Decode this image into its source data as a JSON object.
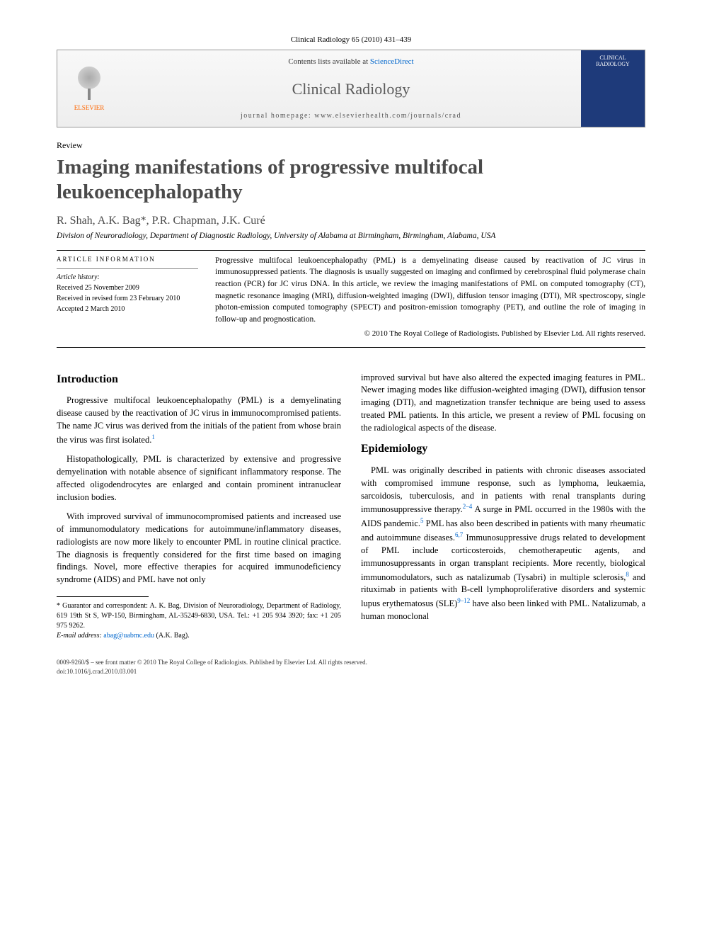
{
  "journalCitation": "Clinical Radiology 65 (2010) 431–439",
  "banner": {
    "publisher": "ELSEVIER",
    "contentsPre": "Contents lists available at ",
    "contentsLink": "ScienceDirect",
    "journalName": "Clinical Radiology",
    "homepagePre": "journal homepage: ",
    "homepageUrl": "www.elsevierhealth.com/journals/crad",
    "coverLabel": "CLINICAL RADIOLOGY"
  },
  "articleType": "Review",
  "title": "Imaging manifestations of progressive multifocal leukoencephalopathy",
  "authors": "R. Shah, A.K. Bag*, P.R. Chapman, J.K. Curé",
  "affiliation": "Division of Neuroradiology, Department of Diagnostic Radiology, University of Alabama at Birmingham, Birmingham, Alabama, USA",
  "articleInfo": {
    "heading": "ARTICLE INFORMATION",
    "historyHeading": "Article history:",
    "received": "Received 25 November 2009",
    "revised": "Received in revised form 23 February 2010",
    "accepted": "Accepted 2 March 2010"
  },
  "abstract": "Progressive multifocal leukoencephalopathy (PML) is a demyelinating disease caused by reactivation of JC virus in immunosuppressed patients. The diagnosis is usually suggested on imaging and confirmed by cerebrospinal fluid polymerase chain reaction (PCR) for JC virus DNA. In this article, we review the imaging manifestations of PML on computed tomography (CT), magnetic resonance imaging (MRI), diffusion-weighted imaging (DWI), diffusion tensor imaging (DTI), MR spectroscopy, single photon-emission computed tomography (SPECT) and positron-emission tomography (PET), and outline the role of imaging in follow-up and prognostication.",
  "copyright": "© 2010 The Royal College of Radiologists. Published by Elsevier Ltd. All rights reserved.",
  "sections": {
    "introHeading": "Introduction",
    "intro1": "Progressive multifocal leukoencephalopathy (PML) is a demyelinating disease caused by the reactivation of JC virus in immunocompromised patients. The name JC virus was derived from the initials of the patient from whose brain the virus was first isolated.",
    "intro2": "Histopathologically, PML is characterized by extensive and progressive demyelination with notable absence of significant inflammatory response. The affected oligodendrocytes are enlarged and contain prominent intranuclear inclusion bodies.",
    "intro3": "With improved survival of immunocompromised patients and increased use of immunomodulatory medications for autoimmune/inflammatory diseases, radiologists are now more likely to encounter PML in routine clinical practice. The diagnosis is frequently considered for the first time based on imaging findings. Novel, more effective therapies for acquired immunodeficiency syndrome (AIDS) and PML have not only",
    "col2Continue": "improved survival but have also altered the expected imaging features in PML. Newer imaging modes like diffusion-weighted imaging (DWI), diffusion tensor imaging (DTI), and magnetization transfer technique are being used to assess treated PML patients. In this article, we present a review of PML focusing on the radiological aspects of the disease.",
    "epiHeading": "Epidemiology",
    "epi1": "PML was originally described in patients with chronic diseases associated with compromised immune response, such as lymphoma, leukaemia, sarcoidosis, tuberculosis, and in patients with renal transplants during immunosuppressive therapy.",
    "epi1b": " A surge in PML occurred in the 1980s with the AIDS pandemic.",
    "epi1c": " PML has also been described in patients with many rheumatic and autoimmune diseases.",
    "epi1d": " Immunosuppressive drugs related to development of PML include corticosteroids, chemotherapeutic agents, and immunosuppressants in organ transplant recipients. More recently, biological immunomodulators, such as natalizumab (Tysabri) in multiple sclerosis,",
    "epi1e": " and rituximab in patients with B-cell lymphoproliferative disorders and systemic lupus erythematosus (SLE)",
    "epi1f": " have also been linked with PML. Natalizumab, a human monoclonal"
  },
  "footnote": {
    "corr": "* Guarantor and correspondent: A. K. Bag, Division of Neuroradiology, Department of Radiology, 619 19th St S, WP-150, Birmingham, AL-35249-6830, USA. Tel.: +1 205 934 3920; fax: +1 205 975 9262.",
    "emailLabel": "E-mail address: ",
    "email": "abag@uabmc.edu",
    "emailSuffix": " (A.K. Bag)."
  },
  "pageFooter": {
    "line1": "0009-9260/$ – see front matter © 2010 The Royal College of Radiologists. Published by Elsevier Ltd. All rights reserved.",
    "line2": "doi:10.1016/j.crad.2010.03.001"
  },
  "refs": {
    "r1": "1",
    "r24": "2–4",
    "r5": "5",
    "r67": "6,7",
    "r8": "8",
    "r912": "9–12"
  }
}
